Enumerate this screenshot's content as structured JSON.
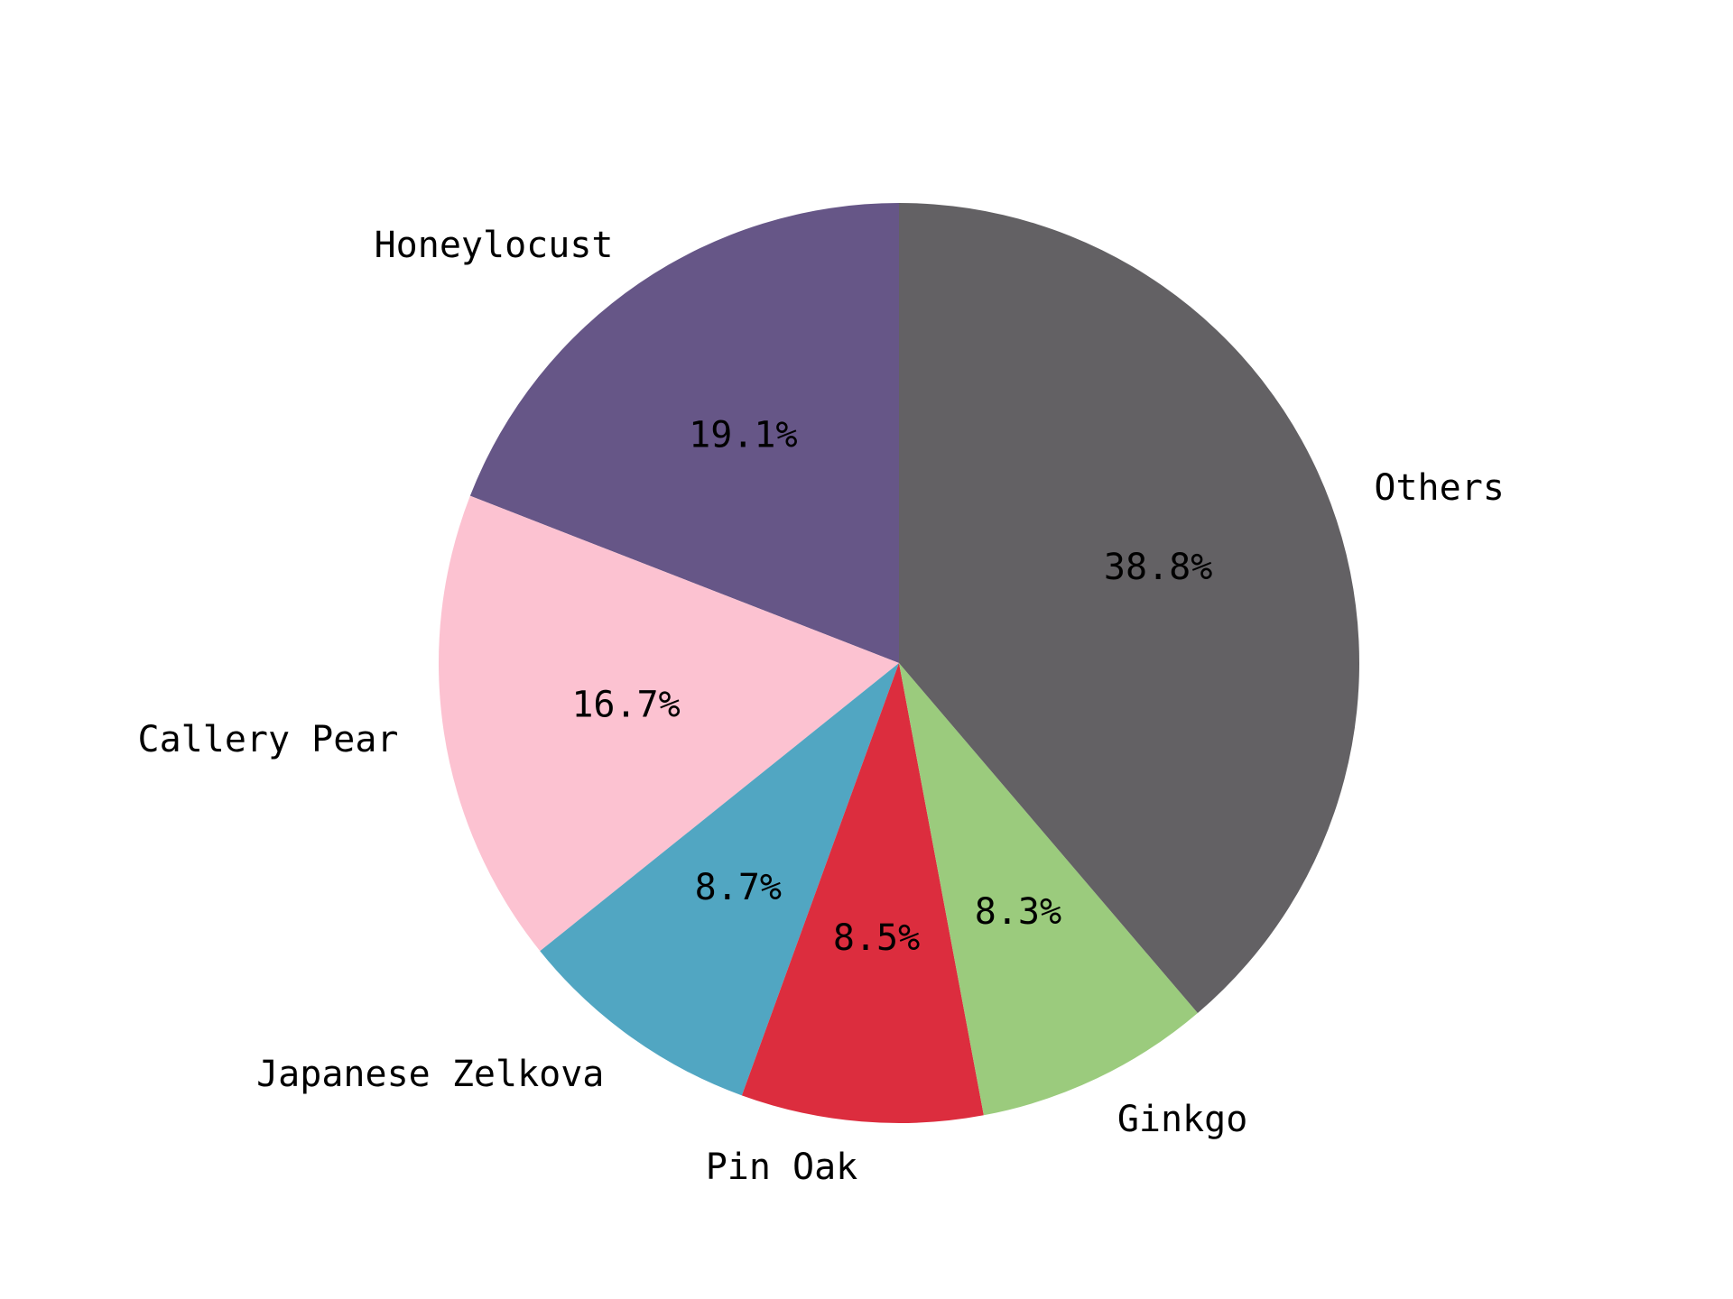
{
  "chart_data": {
    "type": "pie",
    "title": "",
    "start_angle_deg": 90,
    "direction": "counterclockwise",
    "slices": [
      {
        "label": "Honeylocust",
        "value": 19.1,
        "pct_text": "19.1%",
        "color": "#665687"
      },
      {
        "label": "Callery Pear",
        "value": 16.7,
        "pct_text": "16.7%",
        "color": "#fcc2d1"
      },
      {
        "label": "Japanese Zelkova",
        "value": 8.7,
        "pct_text": "8.7%",
        "color": "#51a6c2"
      },
      {
        "label": "Pin Oak",
        "value": 8.5,
        "pct_text": "8.5%",
        "color": "#dc2d3e"
      },
      {
        "label": "Ginkgo",
        "value": 8.3,
        "pct_text": "8.3%",
        "color": "#9bcb7d"
      },
      {
        "label": "Others",
        "value": 38.8,
        "pct_text": "38.8%",
        "color": "#636164"
      }
    ]
  }
}
